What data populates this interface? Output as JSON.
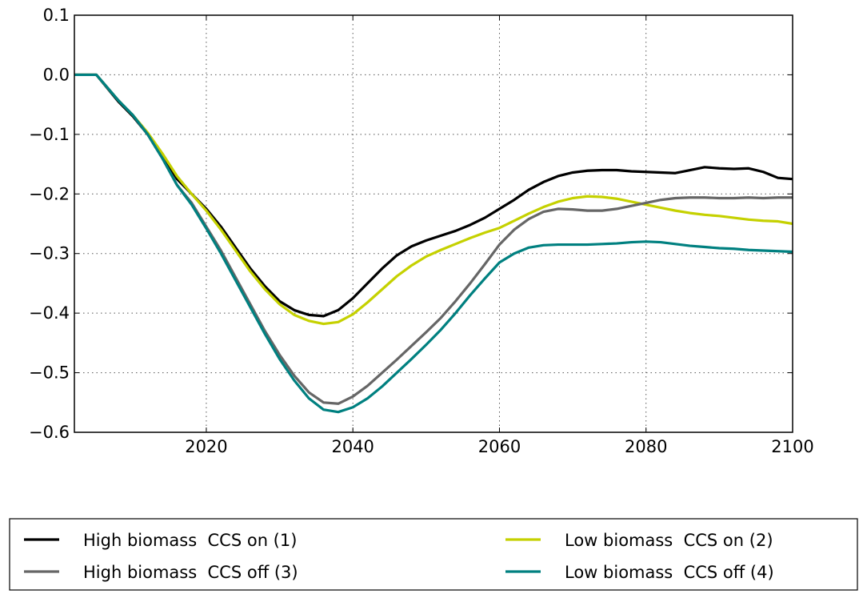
{
  "chart_data": {
    "type": "line",
    "x": [
      2002,
      2005,
      2008,
      2010,
      2012,
      2014,
      2016,
      2018,
      2020,
      2022,
      2024,
      2026,
      2028,
      2030,
      2032,
      2034,
      2036,
      2038,
      2040,
      2042,
      2044,
      2046,
      2048,
      2050,
      2052,
      2054,
      2056,
      2058,
      2060,
      2062,
      2064,
      2066,
      2068,
      2070,
      2072,
      2074,
      2076,
      2078,
      2080,
      2082,
      2084,
      2086,
      2088,
      2090,
      2092,
      2094,
      2096,
      2098,
      2100
    ],
    "series": [
      {
        "name": "High biomass  CCS on (1)",
        "color": "#000000",
        "values": [
          0,
          0,
          -0.045,
          -0.07,
          -0.1,
          -0.135,
          -0.175,
          -0.2,
          -0.225,
          -0.255,
          -0.29,
          -0.325,
          -0.355,
          -0.38,
          -0.395,
          -0.403,
          -0.405,
          -0.395,
          -0.375,
          -0.35,
          -0.325,
          -0.303,
          -0.288,
          -0.278,
          -0.27,
          -0.262,
          -0.252,
          -0.24,
          -0.225,
          -0.21,
          -0.193,
          -0.18,
          -0.17,
          -0.164,
          -0.161,
          -0.16,
          -0.16,
          -0.162,
          -0.163,
          -0.164,
          -0.165,
          -0.16,
          -0.155,
          -0.157,
          -0.158,
          -0.157,
          -0.163,
          -0.173,
          -0.175
        ]
      },
      {
        "name": "Low biomass  CCS on (2)",
        "color": "#c5d100",
        "values": [
          0,
          0,
          -0.043,
          -0.068,
          -0.097,
          -0.132,
          -0.17,
          -0.2,
          -0.228,
          -0.26,
          -0.295,
          -0.33,
          -0.36,
          -0.385,
          -0.403,
          -0.413,
          -0.418,
          -0.415,
          -0.402,
          -0.382,
          -0.36,
          -0.338,
          -0.32,
          -0.305,
          -0.294,
          -0.284,
          -0.274,
          -0.265,
          -0.257,
          -0.245,
          -0.233,
          -0.222,
          -0.213,
          -0.207,
          -0.204,
          -0.205,
          -0.208,
          -0.213,
          -0.218,
          -0.223,
          -0.228,
          -0.232,
          -0.235,
          -0.237,
          -0.24,
          -0.243,
          -0.245,
          -0.246,
          -0.25
        ]
      },
      {
        "name": "High biomass  CCS off (3)",
        "color": "#666666",
        "values": [
          0,
          0,
          -0.043,
          -0.068,
          -0.1,
          -0.14,
          -0.185,
          -0.215,
          -0.255,
          -0.295,
          -0.34,
          -0.385,
          -0.43,
          -0.47,
          -0.505,
          -0.533,
          -0.55,
          -0.552,
          -0.54,
          -0.522,
          -0.5,
          -0.478,
          -0.455,
          -0.432,
          -0.408,
          -0.38,
          -0.35,
          -0.318,
          -0.285,
          -0.26,
          -0.242,
          -0.23,
          -0.225,
          -0.226,
          -0.228,
          -0.228,
          -0.225,
          -0.22,
          -0.215,
          -0.21,
          -0.207,
          -0.206,
          -0.206,
          -0.207,
          -0.207,
          -0.206,
          -0.207,
          -0.206,
          -0.206
        ]
      },
      {
        "name": "Low biomass  CCS off (4)",
        "color": "#008080",
        "values": [
          0,
          0,
          -0.043,
          -0.068,
          -0.1,
          -0.14,
          -0.185,
          -0.218,
          -0.258,
          -0.3,
          -0.345,
          -0.39,
          -0.435,
          -0.477,
          -0.513,
          -0.543,
          -0.562,
          -0.566,
          -0.558,
          -0.543,
          -0.523,
          -0.5,
          -0.477,
          -0.453,
          -0.428,
          -0.4,
          -0.37,
          -0.342,
          -0.315,
          -0.3,
          -0.29,
          -0.286,
          -0.285,
          -0.285,
          -0.285,
          -0.284,
          -0.283,
          -0.281,
          -0.28,
          -0.281,
          -0.284,
          -0.287,
          -0.289,
          -0.291,
          -0.292,
          -0.294,
          -0.295,
          -0.296,
          -0.297
        ]
      }
    ],
    "xlim": [
      2002,
      2100
    ],
    "xticks": [
      2020,
      2040,
      2060,
      2080,
      2100
    ],
    "ylim": [
      -0.6,
      0.1
    ],
    "yticks": [
      {
        "value": -0.6,
        "label": "−0.6"
      },
      {
        "value": -0.5,
        "label": "−0.5"
      },
      {
        "value": -0.4,
        "label": "−0.4"
      },
      {
        "value": -0.3,
        "label": "−0.3"
      },
      {
        "value": -0.2,
        "label": "−0.2"
      },
      {
        "value": -0.1,
        "label": "−0.1"
      },
      {
        "value": 0,
        "label": "0.0"
      },
      0.1
    ],
    "grid": true,
    "legend": "bottom"
  }
}
